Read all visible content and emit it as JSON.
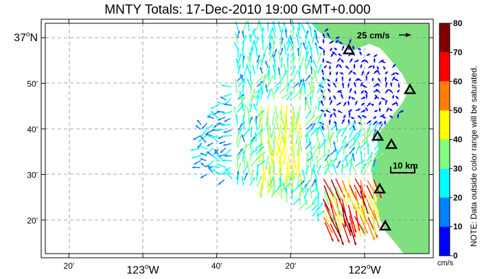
{
  "title": "MNTY Totals: 17-Dec-2010 19:00 GMT+0.000",
  "lat_ticks": [
    {
      "label": "37",
      "sup": "o",
      "suffix": "N",
      "lat": 37.0
    },
    {
      "label": "50'",
      "lat": 36.8333
    },
    {
      "label": "40'",
      "lat": 36.6667
    },
    {
      "label": "30'",
      "lat": 36.5
    },
    {
      "label": "20'",
      "lat": 36.3333
    }
  ],
  "lon_ticks": [
    {
      "label": "20'",
      "lon": -123.3333
    },
    {
      "label": "123",
      "sup": "o",
      "suffix": "W",
      "lon": -123.0
    },
    {
      "label": "40'",
      "lon": -122.6667
    },
    {
      "label": "20'",
      "lon": -122.3333
    },
    {
      "label": "122",
      "sup": "o",
      "suffix": "W",
      "lon": -122.0
    }
  ],
  "scale_arrow": {
    "label": "25 cm/s",
    "speed_cm_s": 25
  },
  "scale_bar": {
    "label": "10 km",
    "length_km": 10
  },
  "colorbar": {
    "ticks": [
      "0",
      "10",
      "20",
      "30",
      "40",
      "50",
      "60",
      "70",
      "80"
    ],
    "unit": "cm/s",
    "note": "NOTE: Data outside color range will be saturated.",
    "colors": [
      "#0000ff",
      "#0080ff",
      "#00ffff",
      "#80ff80",
      "#ffff00",
      "#ff8000",
      "#ff0000",
      "#800000"
    ]
  },
  "land_color": "#80e080",
  "site_icon": "triangle-icon",
  "sites": [
    "site-1",
    "site-2",
    "site-3",
    "site-4",
    "site-5",
    "site-6"
  ]
}
